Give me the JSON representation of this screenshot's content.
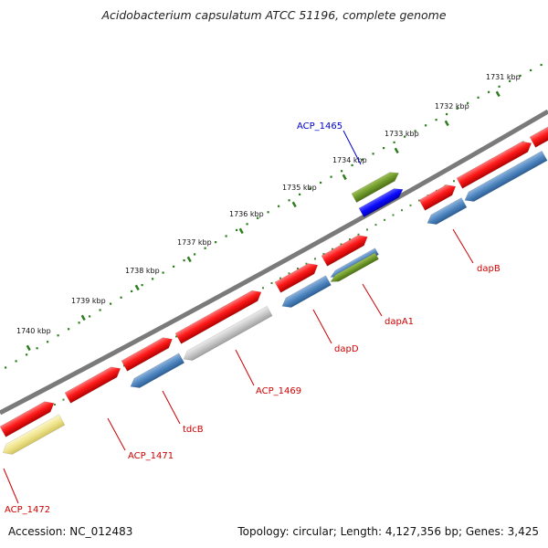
{
  "title": "Acidobacterium capsulatum ATCC 51196, complete genome",
  "footer": {
    "accession": "Accession: NC_012483",
    "summary": "Topology: circular; Length: 4,127,356 bp; Genes: 3,425"
  },
  "colors": {
    "backbone": "#7a7a7a",
    "tick": "#2e7d1e",
    "label_red": "#cc0000",
    "label_blue": "#0000cc"
  },
  "ticks": [
    "1731 kbp",
    "1732 kbp",
    "1733 kbp",
    "1734 kbp",
    "1735 kbp",
    "1736 kbp",
    "1737 kbp",
    "1738 kbp",
    "1739 kbp",
    "1740 kbp"
  ],
  "gene_labels": [
    {
      "name": "ACP_1465",
      "color": "blue"
    },
    {
      "name": "dapB",
      "color": "red"
    },
    {
      "name": "dapA1",
      "color": "red"
    },
    {
      "name": "dapD",
      "color": "red"
    },
    {
      "name": "ACP_1469",
      "color": "red"
    },
    {
      "name": "tdcB",
      "color": "red"
    },
    {
      "name": "ACP_1471",
      "color": "red"
    },
    {
      "name": "ACP_1472",
      "color": "red"
    }
  ]
}
